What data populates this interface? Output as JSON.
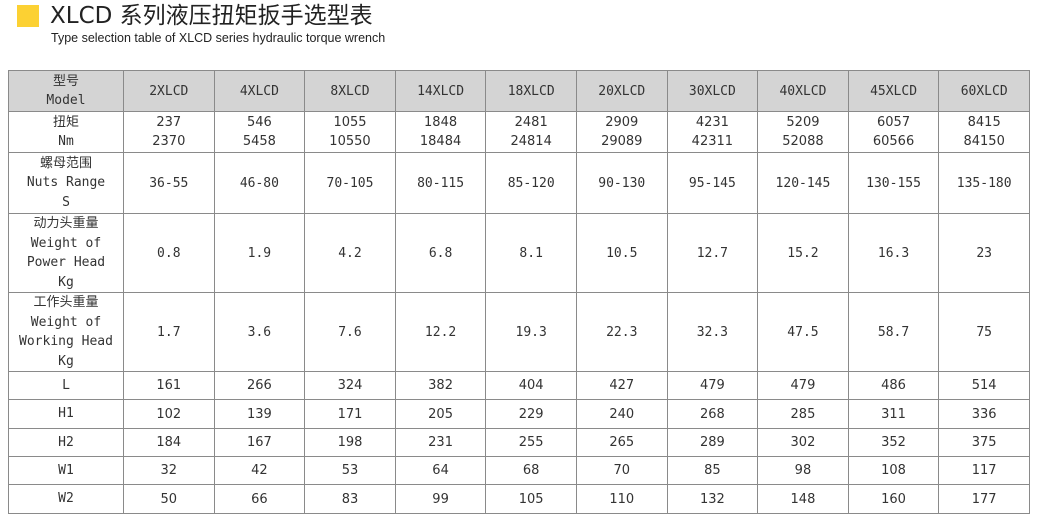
{
  "header": {
    "title": "XLCD 系列液压扭矩扳手选型表",
    "subtitle": "Type selection table of XLCD series hydraulic torque wrench",
    "accent_color": "#fcd133"
  },
  "table": {
    "header_bg": "#d4d4d4",
    "model_label": "型号\nModel",
    "models": [
      "2XLCD",
      "4XLCD",
      "8XLCD",
      "14XLCD",
      "18XLCD",
      "20XLCD",
      "30XLCD",
      "40XLCD",
      "45XLCD",
      "60XLCD"
    ],
    "rows": [
      {
        "label": "扭矩\nNm",
        "values": [
          "237\n2370",
          "546\n5458",
          "1055\n10550",
          "1848\n18484",
          "2481\n24814",
          "2909\n29089",
          "4231\n42311",
          "5209\n52088",
          "6057\n60566",
          "8415\n84150"
        ]
      },
      {
        "label": "螺母范围\nNuts Range\nS",
        "values": [
          "36-55",
          "46-80",
          "70-105",
          "80-115",
          "85-120",
          "90-130",
          "95-145",
          "120-145",
          "130-155",
          "135-180"
        ]
      },
      {
        "label": "动力头重量\nWeight of\nPower Head\nKg",
        "values": [
          "0.8",
          "1.9",
          "4.2",
          "6.8",
          "8.1",
          "10.5",
          "12.7",
          "15.2",
          "16.3",
          "23"
        ]
      },
      {
        "label": "工作头重量\nWeight of\nWorking Head\nKg",
        "values": [
          "1.7",
          "3.6",
          "7.6",
          "12.2",
          "19.3",
          "22.3",
          "32.3",
          "47.5",
          "58.7",
          "75"
        ]
      },
      {
        "label": "L",
        "values": [
          "161",
          "266",
          "324",
          "382",
          "404",
          "427",
          "479",
          "479",
          "486",
          "514"
        ]
      },
      {
        "label": "H1",
        "values": [
          "102",
          "139",
          "171",
          "205",
          "229",
          "240",
          "268",
          "285",
          "311",
          "336"
        ]
      },
      {
        "label": "H2",
        "values": [
          "184",
          "167",
          "198",
          "231",
          "255",
          "265",
          "289",
          "302",
          "352",
          "375"
        ]
      },
      {
        "label": "W1",
        "values": [
          "32",
          "42",
          "53",
          "64",
          "68",
          "70",
          "85",
          "98",
          "108",
          "117"
        ]
      },
      {
        "label": "W2",
        "values": [
          "50",
          "66",
          "83",
          "99",
          "105",
          "110",
          "132",
          "148",
          "160",
          "177"
        ]
      }
    ]
  }
}
